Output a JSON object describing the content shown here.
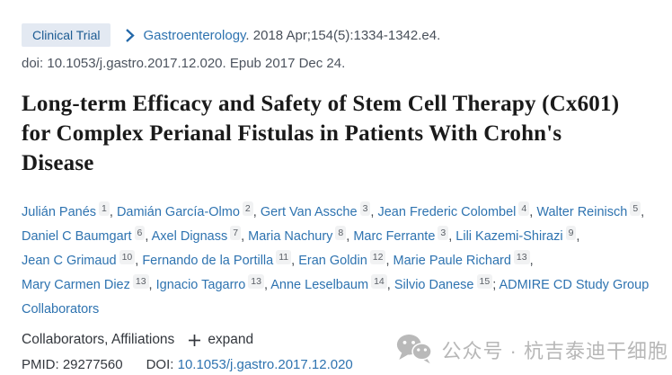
{
  "header": {
    "badge_label": "Clinical Trial",
    "journal": "Gastroenterology",
    "citation_rest": ". 2018 Apr;154(5):1334-1342.e4.",
    "doi_line": "doi: 10.1053/j.gastro.2017.12.020. Epub 2017 Dec 24."
  },
  "title": "Long-term Efficacy and Safety of Stem Cell Therapy (Cx601) for Complex Perianal Fistulas in Patients With Crohn's Disease",
  "authors": [
    {
      "name": "Julián Panés",
      "sup": "1"
    },
    {
      "name": "Damián García-Olmo",
      "sup": "2"
    },
    {
      "name": "Gert Van Assche",
      "sup": "3"
    },
    {
      "name": "Jean Frederic Colombel",
      "sup": "4"
    },
    {
      "name": "Walter Reinisch",
      "sup": "5"
    },
    {
      "name": "Daniel C Baumgart",
      "sup": "6"
    },
    {
      "name": "Axel Dignass",
      "sup": "7"
    },
    {
      "name": "Maria Nachury",
      "sup": "8"
    },
    {
      "name": "Marc Ferrante",
      "sup": "3"
    },
    {
      "name": "Lili Kazemi-Shirazi",
      "sup": "9"
    },
    {
      "name": "Jean C Grimaud",
      "sup": "10"
    },
    {
      "name": "Fernando de la Portilla",
      "sup": "11"
    },
    {
      "name": "Eran Goldin",
      "sup": "12"
    },
    {
      "name": "Marie Paule Richard",
      "sup": "13"
    },
    {
      "name": "Mary Carmen Diez",
      "sup": "13"
    },
    {
      "name": "Ignacio Tagarro",
      "sup": "13"
    },
    {
      "name": "Anne Leselbaum",
      "sup": "14"
    },
    {
      "name": "Silvio Danese",
      "sup": "15"
    }
  ],
  "collaborator_group": "ADMIRE CD Study Group Collaborators",
  "meta_row": {
    "label": "Collaborators, Affiliations",
    "expand_label": "expand"
  },
  "ids": {
    "pmid_label": "PMID:",
    "pmid_value": "29277560",
    "doi_label": "DOI:",
    "doi_value": "10.1053/j.gastro.2017.12.020"
  },
  "watermark": {
    "icon": "wechat-icon",
    "text": "公众号 · 杭吉泰迪干细胞"
  },
  "colors": {
    "link_blue": "#2e73b0",
    "badge_bg": "#e3e9f2",
    "badge_text": "#1d5c93",
    "body_text": "#49505a",
    "title_text": "#1a1a1a",
    "watermark_gray": "#b7b7b7"
  }
}
